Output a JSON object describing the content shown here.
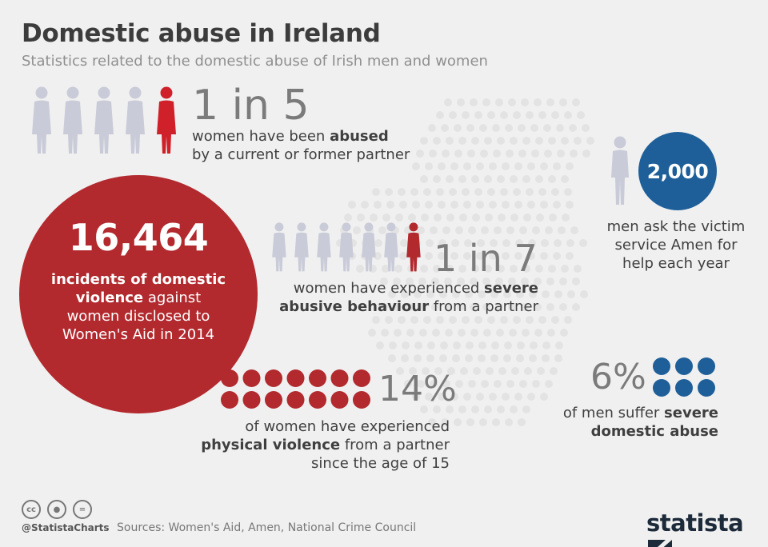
{
  "header": {
    "title": "Domestic abuse in Ireland",
    "subtitle": "Statistics related to the domestic abuse of Irish men and women"
  },
  "stats": {
    "one_in_five": {
      "value": "1 in 5",
      "line1_pre": "women have been ",
      "line1_bold": "abused",
      "line2": "by a current or former partner"
    },
    "incidents": {
      "value": "16,464",
      "bold1": "incidents of domestic",
      "bold2": "violence",
      "rest1": " against",
      "rest2": "women disclosed to",
      "rest3": "Women's Aid in 2014"
    },
    "one_in_seven": {
      "value": "1 in 7",
      "line1_pre": "women have experienced ",
      "line1_bold": "severe",
      "line2_bold": "abusive behaviour",
      "line2_rest": " from a partner"
    },
    "men_2000": {
      "value": "2,000",
      "line1": "men ask the victim",
      "line2": "service Amen for",
      "line3": "help each year"
    },
    "pct_14": {
      "value": "14%",
      "line1": "of women have experienced",
      "line2_bold": "physical violence",
      "line2_rest": " from a partner",
      "line3": "since the age of 15"
    },
    "pct_6": {
      "value": "6%",
      "line1_pre": "of men suffer ",
      "line1_bold": "severe",
      "line2_bold": "domestic abuse"
    }
  },
  "colors": {
    "red": "#b2292e",
    "bright_red": "#d0202a",
    "blue": "#1f5f99",
    "grey_figure": "#c9cbd8"
  },
  "footer": {
    "license_icons": [
      "cc-icon",
      "by-icon",
      "nd-icon"
    ],
    "handle": "@StatistaCharts",
    "sources": "Sources: Women's Aid, Amen, National Crime Council",
    "logo": "statista"
  }
}
